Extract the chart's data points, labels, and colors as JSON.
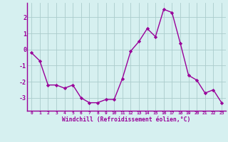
{
  "x": [
    0,
    1,
    2,
    3,
    4,
    5,
    6,
    7,
    8,
    9,
    10,
    11,
    12,
    13,
    14,
    15,
    16,
    17,
    18,
    19,
    20,
    21,
    22,
    23
  ],
  "y": [
    -0.2,
    -0.7,
    -2.2,
    -2.2,
    -2.4,
    -2.2,
    -3.0,
    -3.3,
    -3.3,
    -3.1,
    -3.1,
    -1.8,
    -0.1,
    0.5,
    1.3,
    0.8,
    2.5,
    2.3,
    0.4,
    -1.6,
    -1.9,
    -2.7,
    -2.5,
    -3.3
  ],
  "line_color": "#990099",
  "marker": "D",
  "marker_size": 2.2,
  "line_width": 1.0,
  "bg_color": "#d6f0f0",
  "grid_color": "#aacccc",
  "xlabel": "Windchill (Refroidissement éolien,°C)",
  "xlabel_color": "#990099",
  "tick_label_color": "#990099",
  "axis_color": "#990099",
  "ylim": [
    -3.8,
    2.9
  ],
  "yticks": [
    -3,
    -2,
    -1,
    0,
    1,
    2
  ],
  "xlim": [
    -0.5,
    23.5
  ],
  "xticks": [
    0,
    1,
    2,
    3,
    4,
    5,
    6,
    7,
    8,
    9,
    10,
    11,
    12,
    13,
    14,
    15,
    16,
    17,
    18,
    19,
    20,
    21,
    22,
    23
  ]
}
